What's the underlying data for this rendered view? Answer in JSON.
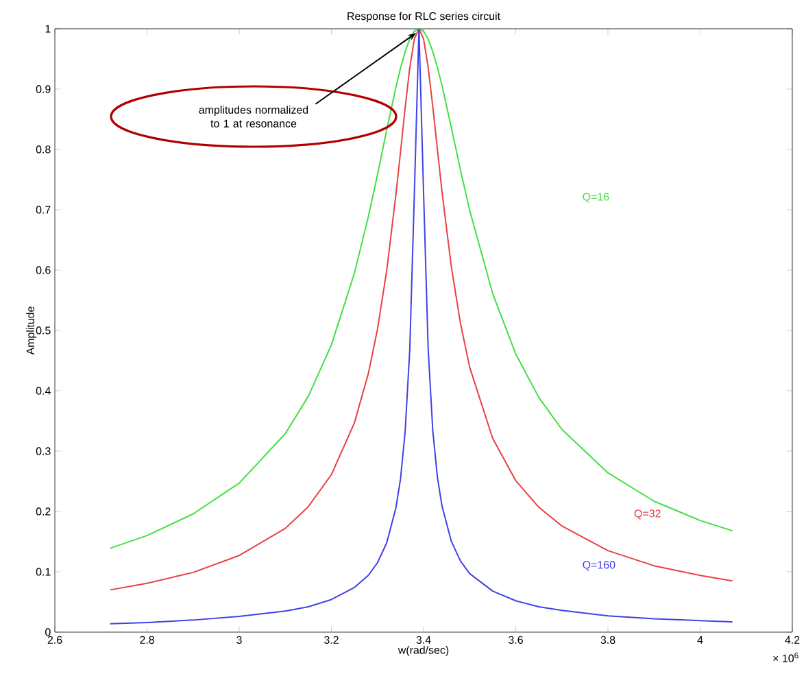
{
  "chart_data": {
    "type": "line",
    "title": "Response for RLC series circuit",
    "xlabel": "w(rad/sec)",
    "ylabel": "Amplitude",
    "x": [
      2.72,
      2.8,
      2.9,
      3.0,
      3.1,
      3.15,
      3.2,
      3.25,
      3.28,
      3.3,
      3.32,
      3.34,
      3.35,
      3.36,
      3.37,
      3.38,
      3.39,
      3.4,
      3.41,
      3.42,
      3.43,
      3.44,
      3.46,
      3.48,
      3.5,
      3.55,
      3.6,
      3.65,
      3.7,
      3.8,
      3.9,
      4.0,
      4.07
    ],
    "series": [
      {
        "name": "Q=16",
        "color": "#40e040",
        "values": [
          0.139,
          0.16,
          0.196,
          0.247,
          0.329,
          0.391,
          0.476,
          0.595,
          0.688,
          0.758,
          0.832,
          0.903,
          0.935,
          0.962,
          0.983,
          0.996,
          1,
          0.996,
          0.983,
          0.962,
          0.936,
          0.906,
          0.837,
          0.766,
          0.699,
          0.561,
          0.461,
          0.389,
          0.336,
          0.264,
          0.217,
          0.185,
          0.168
        ]
      },
      {
        "name": "Q=32",
        "color": "#e84040",
        "values": [
          0.07,
          0.081,
          0.099,
          0.127,
          0.172,
          0.208,
          0.261,
          0.347,
          0.428,
          0.502,
          0.599,
          0.725,
          0.796,
          0.869,
          0.935,
          0.983,
          1,
          0.983,
          0.936,
          0.871,
          0.8,
          0.73,
          0.607,
          0.512,
          0.439,
          0.321,
          0.251,
          0.207,
          0.176,
          0.135,
          0.11,
          0.094,
          0.085
        ]
      },
      {
        "name": "Q=160",
        "color": "#4040e8",
        "values": [
          0.014,
          0.016,
          0.02,
          0.026,
          0.035,
          0.042,
          0.054,
          0.074,
          0.094,
          0.115,
          0.148,
          0.206,
          0.254,
          0.332,
          0.467,
          0.726,
          1,
          0.728,
          0.469,
          0.334,
          0.257,
          0.209,
          0.151,
          0.118,
          0.097,
          0.068,
          0.052,
          0.042,
          0.036,
          0.027,
          0.022,
          0.019,
          0.017
        ]
      }
    ],
    "xlim": [
      2.6,
      4.2
    ],
    "ylim": [
      0,
      1
    ],
    "xticks": [
      2.6,
      2.8,
      3,
      3.2,
      3.4,
      3.6,
      3.8,
      4,
      4.2
    ],
    "yticks": [
      0,
      0.1,
      0.2,
      0.3,
      0.4,
      0.5,
      0.6,
      0.7,
      0.8,
      0.9,
      1
    ],
    "annotations": [
      {
        "text": "amplitudes normalized to 1 at resonance",
        "x": 3.39,
        "y": 1
      },
      "× 10$^{6}$"
    ]
  }
}
